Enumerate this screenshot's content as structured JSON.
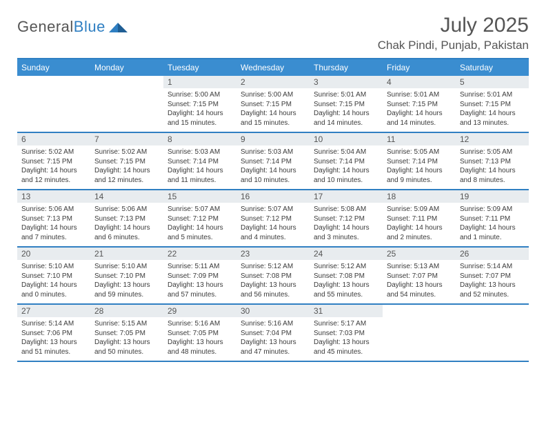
{
  "brand": {
    "general": "General",
    "blue": "Blue"
  },
  "title": "July 2025",
  "location": "Chak Pindi, Punjab, Pakistan",
  "colors": {
    "header_bg": "#3a8dd0",
    "border": "#2f7fc2",
    "daynum_bg": "#e8ecef",
    "text": "#3a3a3a",
    "brand_blue": "#2f7fc2"
  },
  "dow": [
    "Sunday",
    "Monday",
    "Tuesday",
    "Wednesday",
    "Thursday",
    "Friday",
    "Saturday"
  ],
  "weeks": [
    [
      null,
      null,
      {
        "n": "1",
        "sr": "Sunrise: 5:00 AM",
        "ss": "Sunset: 7:15 PM",
        "d1": "Daylight: 14 hours",
        "d2": "and 15 minutes."
      },
      {
        "n": "2",
        "sr": "Sunrise: 5:00 AM",
        "ss": "Sunset: 7:15 PM",
        "d1": "Daylight: 14 hours",
        "d2": "and 15 minutes."
      },
      {
        "n": "3",
        "sr": "Sunrise: 5:01 AM",
        "ss": "Sunset: 7:15 PM",
        "d1": "Daylight: 14 hours",
        "d2": "and 14 minutes."
      },
      {
        "n": "4",
        "sr": "Sunrise: 5:01 AM",
        "ss": "Sunset: 7:15 PM",
        "d1": "Daylight: 14 hours",
        "d2": "and 14 minutes."
      },
      {
        "n": "5",
        "sr": "Sunrise: 5:01 AM",
        "ss": "Sunset: 7:15 PM",
        "d1": "Daylight: 14 hours",
        "d2": "and 13 minutes."
      }
    ],
    [
      {
        "n": "6",
        "sr": "Sunrise: 5:02 AM",
        "ss": "Sunset: 7:15 PM",
        "d1": "Daylight: 14 hours",
        "d2": "and 12 minutes."
      },
      {
        "n": "7",
        "sr": "Sunrise: 5:02 AM",
        "ss": "Sunset: 7:15 PM",
        "d1": "Daylight: 14 hours",
        "d2": "and 12 minutes."
      },
      {
        "n": "8",
        "sr": "Sunrise: 5:03 AM",
        "ss": "Sunset: 7:14 PM",
        "d1": "Daylight: 14 hours",
        "d2": "and 11 minutes."
      },
      {
        "n": "9",
        "sr": "Sunrise: 5:03 AM",
        "ss": "Sunset: 7:14 PM",
        "d1": "Daylight: 14 hours",
        "d2": "and 10 minutes."
      },
      {
        "n": "10",
        "sr": "Sunrise: 5:04 AM",
        "ss": "Sunset: 7:14 PM",
        "d1": "Daylight: 14 hours",
        "d2": "and 10 minutes."
      },
      {
        "n": "11",
        "sr": "Sunrise: 5:05 AM",
        "ss": "Sunset: 7:14 PM",
        "d1": "Daylight: 14 hours",
        "d2": "and 9 minutes."
      },
      {
        "n": "12",
        "sr": "Sunrise: 5:05 AM",
        "ss": "Sunset: 7:13 PM",
        "d1": "Daylight: 14 hours",
        "d2": "and 8 minutes."
      }
    ],
    [
      {
        "n": "13",
        "sr": "Sunrise: 5:06 AM",
        "ss": "Sunset: 7:13 PM",
        "d1": "Daylight: 14 hours",
        "d2": "and 7 minutes."
      },
      {
        "n": "14",
        "sr": "Sunrise: 5:06 AM",
        "ss": "Sunset: 7:13 PM",
        "d1": "Daylight: 14 hours",
        "d2": "and 6 minutes."
      },
      {
        "n": "15",
        "sr": "Sunrise: 5:07 AM",
        "ss": "Sunset: 7:12 PM",
        "d1": "Daylight: 14 hours",
        "d2": "and 5 minutes."
      },
      {
        "n": "16",
        "sr": "Sunrise: 5:07 AM",
        "ss": "Sunset: 7:12 PM",
        "d1": "Daylight: 14 hours",
        "d2": "and 4 minutes."
      },
      {
        "n": "17",
        "sr": "Sunrise: 5:08 AM",
        "ss": "Sunset: 7:12 PM",
        "d1": "Daylight: 14 hours",
        "d2": "and 3 minutes."
      },
      {
        "n": "18",
        "sr": "Sunrise: 5:09 AM",
        "ss": "Sunset: 7:11 PM",
        "d1": "Daylight: 14 hours",
        "d2": "and 2 minutes."
      },
      {
        "n": "19",
        "sr": "Sunrise: 5:09 AM",
        "ss": "Sunset: 7:11 PM",
        "d1": "Daylight: 14 hours",
        "d2": "and 1 minute."
      }
    ],
    [
      {
        "n": "20",
        "sr": "Sunrise: 5:10 AM",
        "ss": "Sunset: 7:10 PM",
        "d1": "Daylight: 14 hours",
        "d2": "and 0 minutes."
      },
      {
        "n": "21",
        "sr": "Sunrise: 5:10 AM",
        "ss": "Sunset: 7:10 PM",
        "d1": "Daylight: 13 hours",
        "d2": "and 59 minutes."
      },
      {
        "n": "22",
        "sr": "Sunrise: 5:11 AM",
        "ss": "Sunset: 7:09 PM",
        "d1": "Daylight: 13 hours",
        "d2": "and 57 minutes."
      },
      {
        "n": "23",
        "sr": "Sunrise: 5:12 AM",
        "ss": "Sunset: 7:08 PM",
        "d1": "Daylight: 13 hours",
        "d2": "and 56 minutes."
      },
      {
        "n": "24",
        "sr": "Sunrise: 5:12 AM",
        "ss": "Sunset: 7:08 PM",
        "d1": "Daylight: 13 hours",
        "d2": "and 55 minutes."
      },
      {
        "n": "25",
        "sr": "Sunrise: 5:13 AM",
        "ss": "Sunset: 7:07 PM",
        "d1": "Daylight: 13 hours",
        "d2": "and 54 minutes."
      },
      {
        "n": "26",
        "sr": "Sunrise: 5:14 AM",
        "ss": "Sunset: 7:07 PM",
        "d1": "Daylight: 13 hours",
        "d2": "and 52 minutes."
      }
    ],
    [
      {
        "n": "27",
        "sr": "Sunrise: 5:14 AM",
        "ss": "Sunset: 7:06 PM",
        "d1": "Daylight: 13 hours",
        "d2": "and 51 minutes."
      },
      {
        "n": "28",
        "sr": "Sunrise: 5:15 AM",
        "ss": "Sunset: 7:05 PM",
        "d1": "Daylight: 13 hours",
        "d2": "and 50 minutes."
      },
      {
        "n": "29",
        "sr": "Sunrise: 5:16 AM",
        "ss": "Sunset: 7:05 PM",
        "d1": "Daylight: 13 hours",
        "d2": "and 48 minutes."
      },
      {
        "n": "30",
        "sr": "Sunrise: 5:16 AM",
        "ss": "Sunset: 7:04 PM",
        "d1": "Daylight: 13 hours",
        "d2": "and 47 minutes."
      },
      {
        "n": "31",
        "sr": "Sunrise: 5:17 AM",
        "ss": "Sunset: 7:03 PM",
        "d1": "Daylight: 13 hours",
        "d2": "and 45 minutes."
      },
      null,
      null
    ]
  ]
}
